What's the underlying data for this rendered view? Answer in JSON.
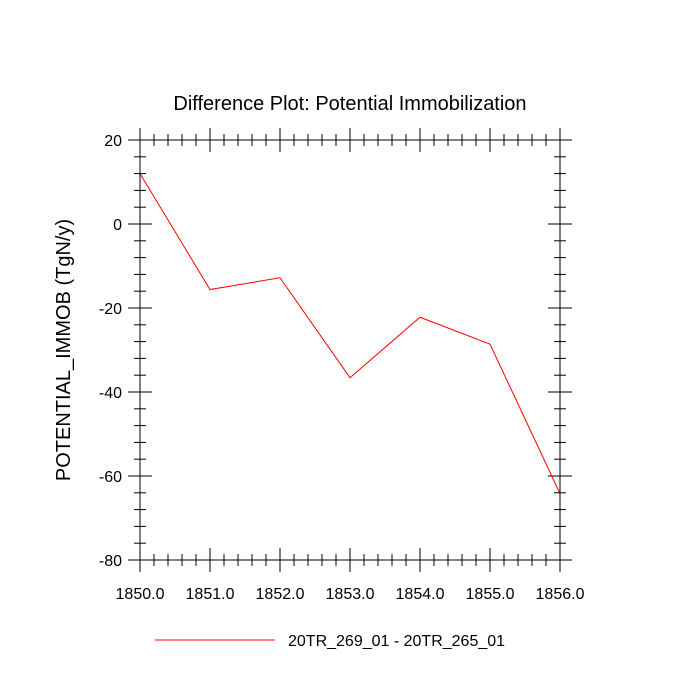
{
  "chart_data": {
    "type": "line",
    "title": "Difference Plot: Potential Immobilization",
    "xlabel": "",
    "ylabel": "POTENTIAL_IMMOB  (TgN/y)",
    "xlim": [
      1850.0,
      1856.0
    ],
    "ylim": [
      -80,
      20
    ],
    "x_ticks": [
      1850.0,
      1851.0,
      1852.0,
      1853.0,
      1854.0,
      1855.0,
      1856.0
    ],
    "x_tick_labels": [
      "1850.0",
      "1851.0",
      "1852.0",
      "1853.0",
      "1854.0",
      "1855.0",
      "1856.0"
    ],
    "y_ticks": [
      20,
      0,
      -20,
      -40,
      -60,
      -80
    ],
    "y_tick_labels": [
      "20",
      "0",
      "-20",
      "-40",
      "-60",
      "-80"
    ],
    "y_minor_step": 4,
    "x_minor_step": 0.2,
    "grid": false,
    "legend_position": "bottom-center",
    "series": [
      {
        "name": "20TR_269_01 - 20TR_265_01",
        "color": "#ff0000",
        "x": [
          1850.0,
          1851.0,
          1852.0,
          1853.0,
          1854.0,
          1855.0,
          1856.0
        ],
        "values": [
          12.0,
          -15.6,
          -12.8,
          -36.6,
          -22.2,
          -28.6,
          -64.2
        ]
      }
    ]
  }
}
